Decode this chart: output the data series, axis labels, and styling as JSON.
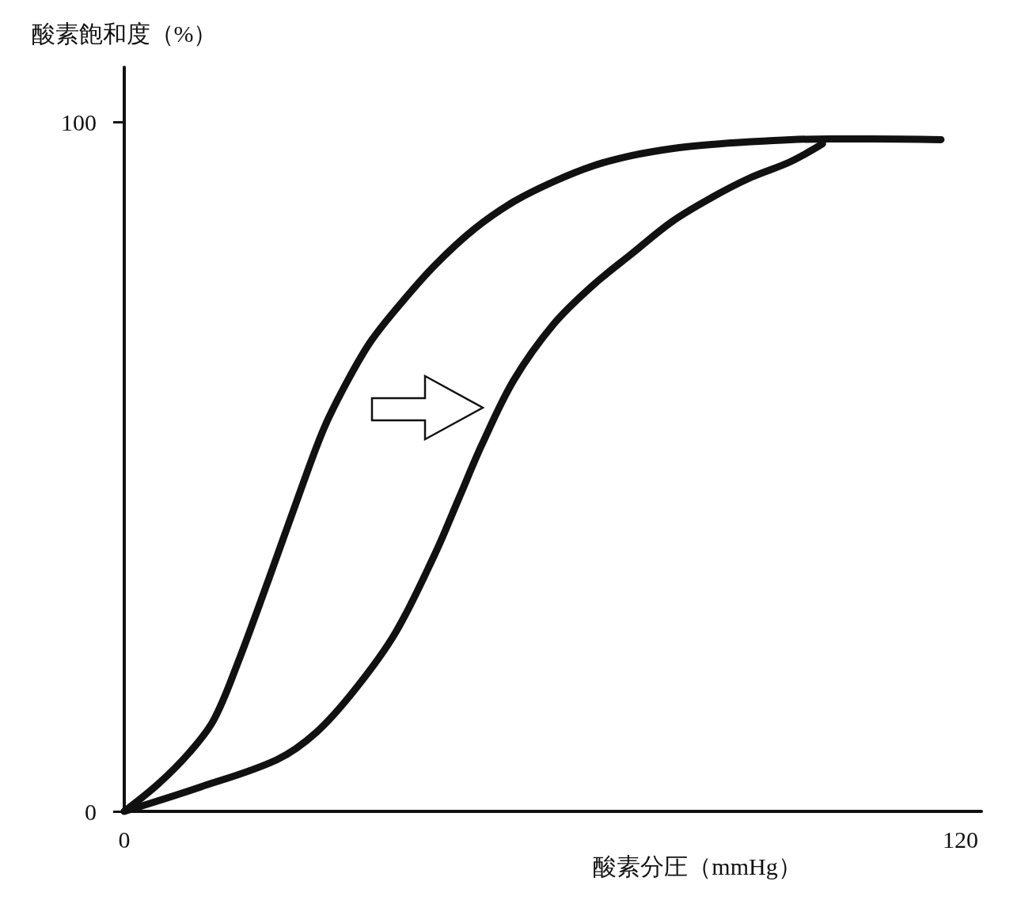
{
  "chart_data": {
    "type": "line",
    "xlabel": "酸素分圧（mmHg）",
    "ylabel": "酸素飽和度（%）",
    "xlim": [
      0,
      123
    ],
    "ylim": [
      0,
      108
    ],
    "xticks": [
      0,
      120
    ],
    "yticks": [
      0,
      100
    ],
    "grid": false,
    "marker": "none",
    "line_style": "solid",
    "series": [
      {
        "color": "#111111",
        "x": [
          0,
          4.9,
          9.4,
          12.8,
          16.2,
          20.8,
          25.3,
          28.7,
          32.1,
          35.5,
          40.0,
          44.6,
          50.2,
          55.9,
          61.6,
          67.3,
          72.9,
          78.6,
          84.3,
          89.9,
          95.6,
          101.3,
          107.0,
          117.2
        ],
        "values": [
          0,
          4.0,
          8.6,
          13.2,
          21.3,
          33.9,
          46.6,
          55.7,
          62.6,
          68.4,
          74.1,
          79.3,
          84.5,
          88.5,
          91.4,
          93.7,
          95.2,
          96.2,
          96.8,
          97.2,
          97.5,
          97.6,
          97.6,
          97.5
        ]
      },
      {
        "color": "#111111",
        "x": [
          0,
          10.5,
          21.9,
          27.6,
          33.2,
          38.9,
          44.6,
          48.0,
          51.4,
          55.9,
          61.6,
          67.3,
          72.9,
          78.6,
          84.3,
          89.9,
          95.6,
          100.2
        ],
        "values": [
          0,
          3.4,
          7.5,
          11.5,
          17.8,
          25.9,
          37.4,
          45.4,
          53.4,
          62.6,
          70.7,
          76.4,
          81.0,
          85.6,
          89.1,
          92.0,
          94.3,
          96.9
        ]
      }
    ]
  }
}
